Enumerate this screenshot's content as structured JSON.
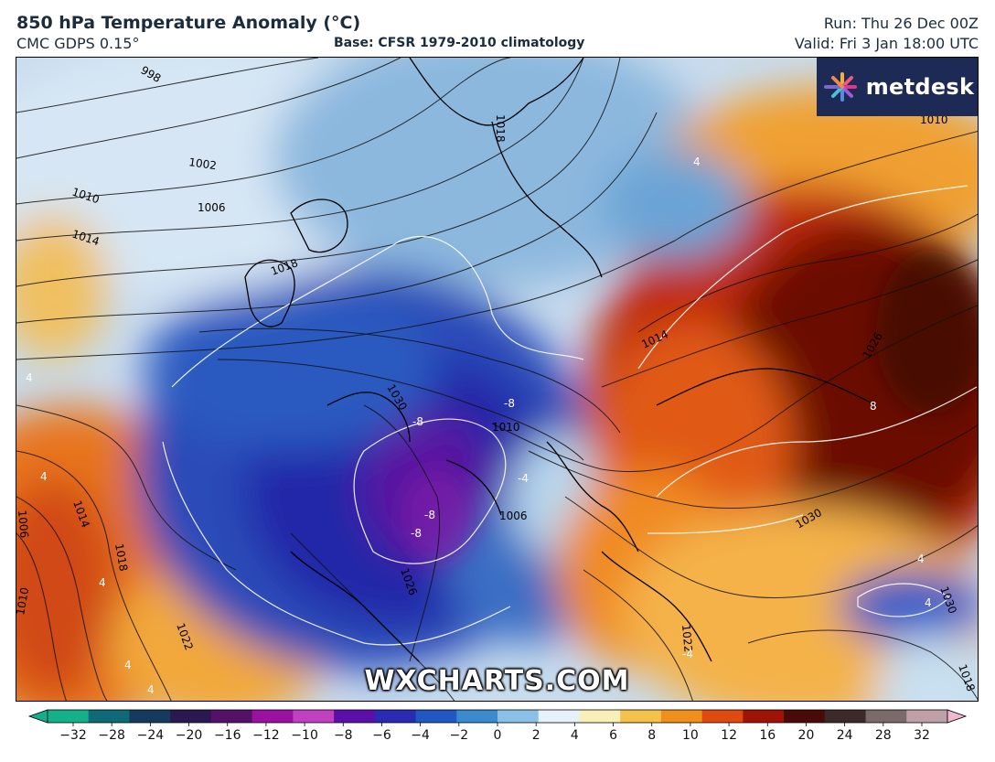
{
  "header": {
    "title": "850 hPa Temperature Anomaly (°C)",
    "model": "CMC GDPS 0.15°",
    "base": "Base: CFSR 1979-2010 climatology",
    "run": "Run: Thu 26 Dec 00Z",
    "valid": "Valid: Fri 3 Jan 18:00 UTC"
  },
  "logo": {
    "text": "metdesk"
  },
  "watermark": "WXCHARTS.COM",
  "isobars": {
    "labels": [
      "998",
      "1002",
      "1010",
      "1006",
      "1014",
      "1018",
      "1018",
      "1030",
      "1010",
      "1026",
      "1006",
      "1014",
      "1018",
      "1014",
      "1010",
      "1010",
      "1022",
      "1026",
      "1006",
      "1030",
      "1022",
      "1030",
      "1018"
    ]
  },
  "anomaly_labels": [
    "-8",
    "-8",
    "-8",
    "-8",
    "4",
    "4",
    "4",
    "4",
    "4",
    "4",
    "4",
    "4",
    "8",
    "-4",
    "-4"
  ],
  "colorbar": {
    "ticks": [
      "−32",
      "−28",
      "−24",
      "−20",
      "−16",
      "−12",
      "−10",
      "−8",
      "−6",
      "−4",
      "−2",
      "0",
      "2",
      "4",
      "6",
      "8",
      "10",
      "12",
      "16",
      "20",
      "24",
      "28",
      "32"
    ],
    "colors": [
      "#14b08a",
      "#0e6a78",
      "#163a5c",
      "#2a1850",
      "#55106a",
      "#9a10a0",
      "#c040c0",
      "#5a10a8",
      "#2a2ab4",
      "#1e58c0",
      "#3a8ad0",
      "#8ac0e6",
      "#e6f2fa",
      "#f8f0b8",
      "#f4c24a",
      "#f0901c",
      "#e04a10",
      "#a01408",
      "#4a0a08",
      "#3c2a2a",
      "#7a6a6a",
      "#c0a0a8",
      "#f0b8d0"
    ],
    "unit": "°C"
  }
}
